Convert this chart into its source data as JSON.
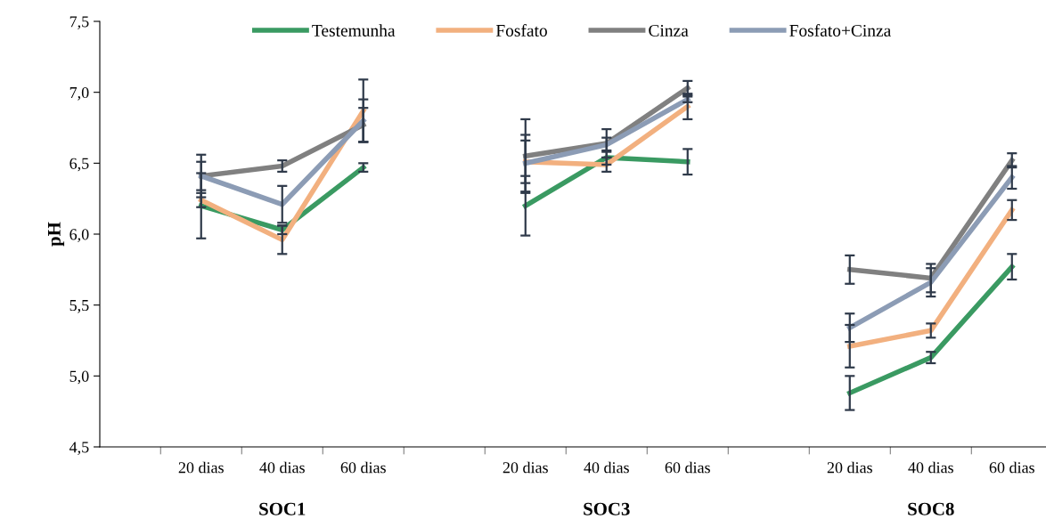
{
  "chart_data": {
    "type": "line",
    "ylabel": "pH",
    "categories": [
      "20 dias",
      "40 dias",
      "60 dias",
      null,
      "20 dias",
      "40 dias",
      "60 dias",
      null,
      "20 dias",
      "40 dias",
      "60 dias"
    ],
    "annotations": [
      "SOC1",
      "SOC3",
      "SOC8"
    ],
    "ylim": [
      4.5,
      7.5
    ],
    "yticks": [
      {
        "value": 4.5,
        "label": "4,5"
      },
      {
        "value": 5.0,
        "label": "5,0"
      },
      {
        "value": 5.5,
        "label": "5,5"
      },
      {
        "value": 6.0,
        "label": "6,0"
      },
      {
        "value": 6.5,
        "label": "6,5"
      },
      {
        "value": 7.0,
        "label": "7,0"
      },
      {
        "value": 7.5,
        "label": "7,5"
      }
    ],
    "grid": false,
    "legend": "top",
    "marker": "none",
    "line_style": "solid",
    "series": [
      {
        "name": "Testemunha",
        "color": "#3a9a62",
        "values": [
          6.2,
          6.03,
          6.47,
          null,
          6.2,
          6.54,
          6.51,
          null,
          4.88,
          5.13,
          5.77
        ],
        "errors": [
          0.23,
          0.03,
          0.03,
          null,
          0.21,
          0.05,
          0.09,
          null,
          0.12,
          0.04,
          0.09
        ]
      },
      {
        "name": "Fosfato",
        "color": "#f2b07f",
        "values": [
          6.24,
          5.96,
          6.87,
          null,
          6.51,
          6.49,
          6.9,
          null,
          5.21,
          5.32,
          6.17
        ],
        "errors": [
          0.05,
          0.1,
          0.22,
          null,
          0.15,
          0.05,
          0.09,
          null,
          0.15,
          0.05,
          0.07
        ]
      },
      {
        "name": "Cinza",
        "color": "#808080",
        "values": [
          6.41,
          6.48,
          6.77,
          null,
          6.55,
          6.64,
          7.03,
          null,
          5.75,
          5.69,
          6.52
        ],
        "errors": [
          0.15,
          0.04,
          0.12,
          null,
          0.26,
          0.1,
          0.05,
          null,
          0.1,
          0.1,
          0.05
        ]
      },
      {
        "name": "Fosfato+Cinza",
        "color": "#8c9cb5",
        "values": [
          6.41,
          6.21,
          6.8,
          null,
          6.5,
          6.63,
          6.95,
          null,
          5.34,
          5.66,
          6.4
        ],
        "errors": [
          0.1,
          0.13,
          0.15,
          null,
          0.2,
          0.05,
          0.02,
          null,
          0.1,
          0.1,
          0.08
        ]
      }
    ]
  }
}
